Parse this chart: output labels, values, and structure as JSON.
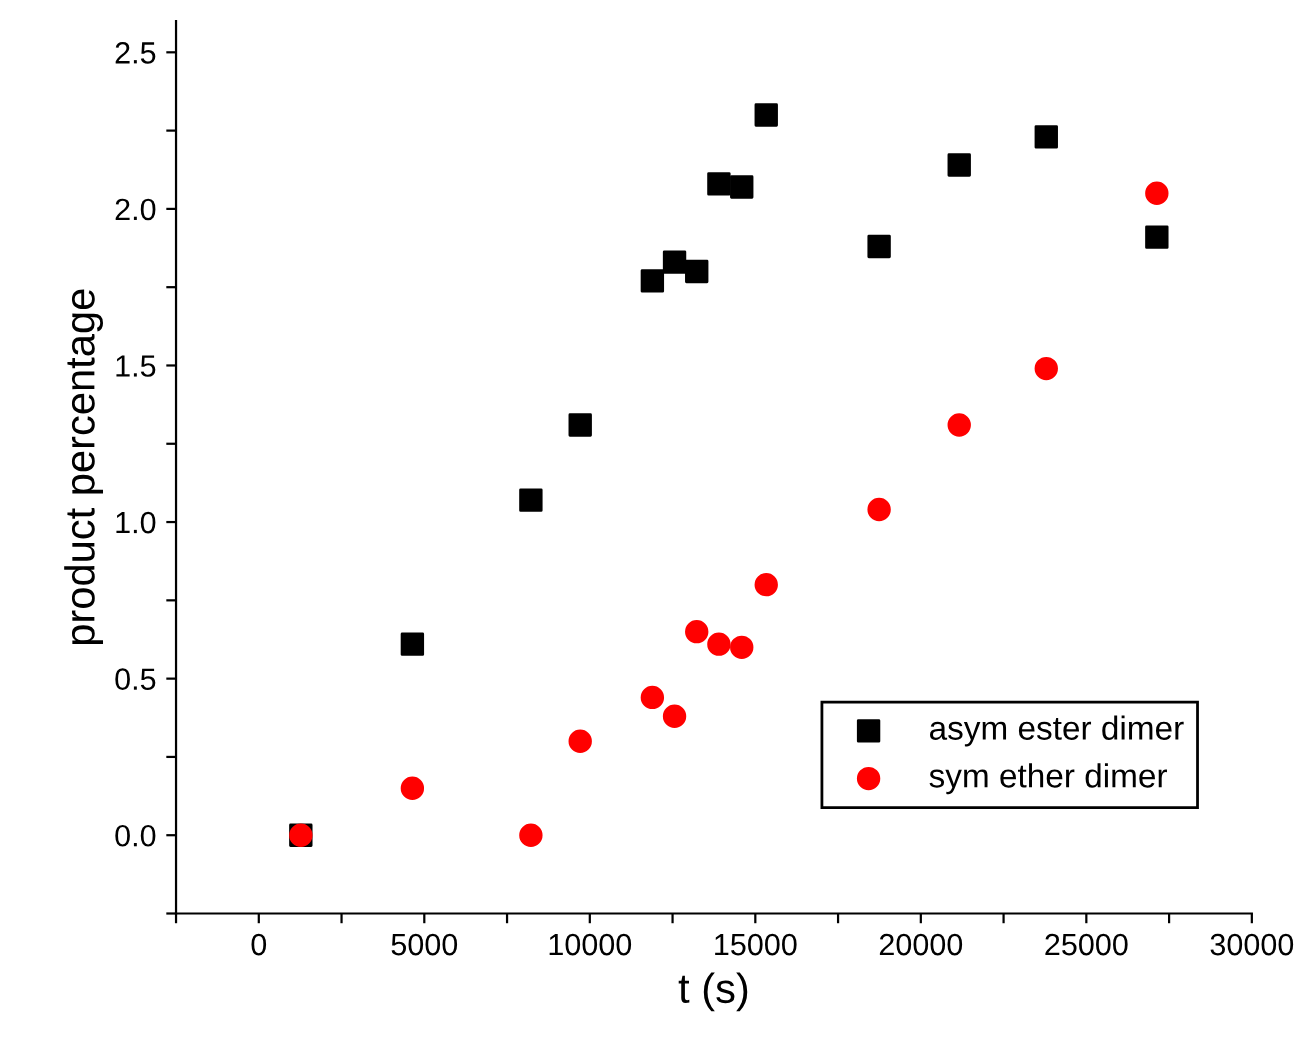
{
  "chart_data": {
    "type": "scatter",
    "xlabel": "t (s)",
    "ylabel": "product percentage",
    "xlim": [
      -2500,
      30000
    ],
    "ylim": [
      -0.25,
      2.6
    ],
    "xticks": [
      {
        "value": -2500,
        "label": null
      },
      0,
      {
        "value": 2500,
        "label": null
      },
      5000,
      {
        "value": 7500,
        "label": null
      },
      10000,
      {
        "value": 12500,
        "label": null
      },
      15000,
      {
        "value": 17500,
        "label": null
      },
      20000,
      {
        "value": 22500,
        "label": null
      },
      25000,
      {
        "value": 27500,
        "label": null
      },
      30000
    ],
    "yticks": [
      {
        "value": -0.25,
        "label": null
      },
      {
        "value": 0,
        "label": "0.0"
      },
      {
        "value": 0.25,
        "label": null
      },
      0.5,
      {
        "value": 0.75,
        "label": null
      },
      {
        "value": 1,
        "label": "1.0"
      },
      {
        "value": 1.25,
        "label": null
      },
      1.5,
      {
        "value": 1.75,
        "label": null
      },
      {
        "value": 2,
        "label": "2.0"
      },
      {
        "value": 2.25,
        "label": null
      },
      2.5
    ],
    "grid": false,
    "legend": "bottom right",
    "series": [
      {
        "name": "asym ester dimer",
        "color": "#000000",
        "marker": "square",
        "x": [
          1270,
          4640,
          8220,
          9710,
          11890,
          12560,
          13230,
          13900,
          14590,
          15330,
          18740,
          21160,
          23790,
          27130
        ],
        "values": [
          0,
          0.61,
          1.07,
          1.31,
          1.77,
          1.83,
          1.8,
          2.08,
          2.07,
          2.3,
          1.88,
          2.14,
          2.23,
          1.91
        ]
      },
      {
        "name": "sym ether dimer",
        "color": "#ff0000",
        "marker": "circle",
        "x": [
          1270,
          4640,
          8220,
          9710,
          11890,
          12560,
          13230,
          13900,
          14590,
          15330,
          18740,
          21160,
          23790,
          27130
        ],
        "values": [
          0,
          0.15,
          0,
          0.3,
          0.44,
          0.38,
          0.65,
          0.61,
          0.6,
          0.8,
          1.04,
          1.31,
          1.49,
          2.05
        ]
      }
    ]
  }
}
